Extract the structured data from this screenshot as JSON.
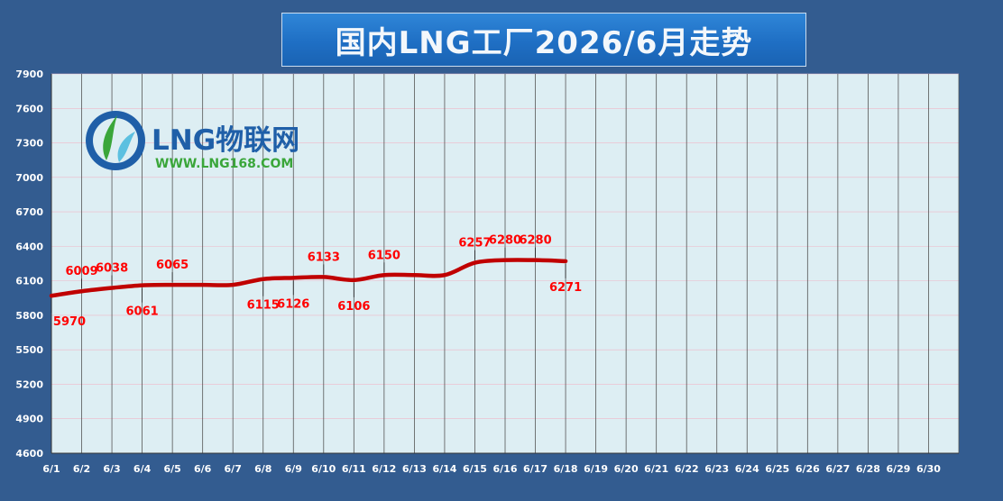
{
  "title": "国内LNG工厂2026/6月走势",
  "logo": {
    "brand": "LNG物联网",
    "url": "WWW.LNG168.COM"
  },
  "colors": {
    "background": "#335c90",
    "plot_area": "#ddeef3",
    "line": "#c00000",
    "label": "#ff0000",
    "grid": "#555555"
  },
  "chart_data": {
    "type": "line",
    "title": "国内LNG工厂2026/6月走势",
    "xlabel": "",
    "ylabel": "",
    "ylim": [
      4600,
      7900
    ],
    "yticks": [
      4600,
      4900,
      5200,
      5500,
      5800,
      6100,
      6400,
      6700,
      7000,
      7300,
      7600,
      7900
    ],
    "categories": [
      "6/1",
      "6/2",
      "6/3",
      "6/4",
      "6/5",
      "6/6",
      "6/7",
      "6/8",
      "6/9",
      "6/10",
      "6/11",
      "6/12",
      "6/13",
      "6/14",
      "6/15",
      "6/16",
      "6/17",
      "6/18",
      "6/19",
      "6/20",
      "6/21",
      "6/22",
      "6/23",
      "6/24",
      "6/25",
      "6/26",
      "6/27",
      "6/28",
      "6/29",
      "6/30"
    ],
    "series": [
      {
        "values": [
          5970,
          6009,
          6038,
          6061,
          6065,
          6065,
          6065,
          6115,
          6126,
          6133,
          6106,
          6150,
          6150,
          6150,
          6257,
          6280,
          6280,
          6271,
          null,
          null,
          null,
          null,
          null,
          null,
          null,
          null,
          null,
          null,
          null,
          null
        ]
      }
    ],
    "data_labels": [
      {
        "index": 0,
        "text": "5970",
        "pos": "below"
      },
      {
        "index": 1,
        "text": "6009",
        "pos": "above"
      },
      {
        "index": 2,
        "text": "6038",
        "pos": "above"
      },
      {
        "index": 3,
        "text": "6061",
        "pos": "below"
      },
      {
        "index": 4,
        "text": "6065",
        "pos": "above"
      },
      {
        "index": 7,
        "text": "6115",
        "pos": "below"
      },
      {
        "index": 8,
        "text": "6126",
        "pos": "below"
      },
      {
        "index": 9,
        "text": "6133",
        "pos": "above"
      },
      {
        "index": 10,
        "text": "6106",
        "pos": "below"
      },
      {
        "index": 11,
        "text": "6150",
        "pos": "above"
      },
      {
        "index": 14,
        "text": "6257",
        "pos": "above"
      },
      {
        "index": 15,
        "text": "6280",
        "pos": "above"
      },
      {
        "index": 16,
        "text": "6280",
        "pos": "above"
      },
      {
        "index": 17,
        "text": "6271",
        "pos": "below"
      }
    ],
    "grid": true,
    "legend": "none"
  }
}
